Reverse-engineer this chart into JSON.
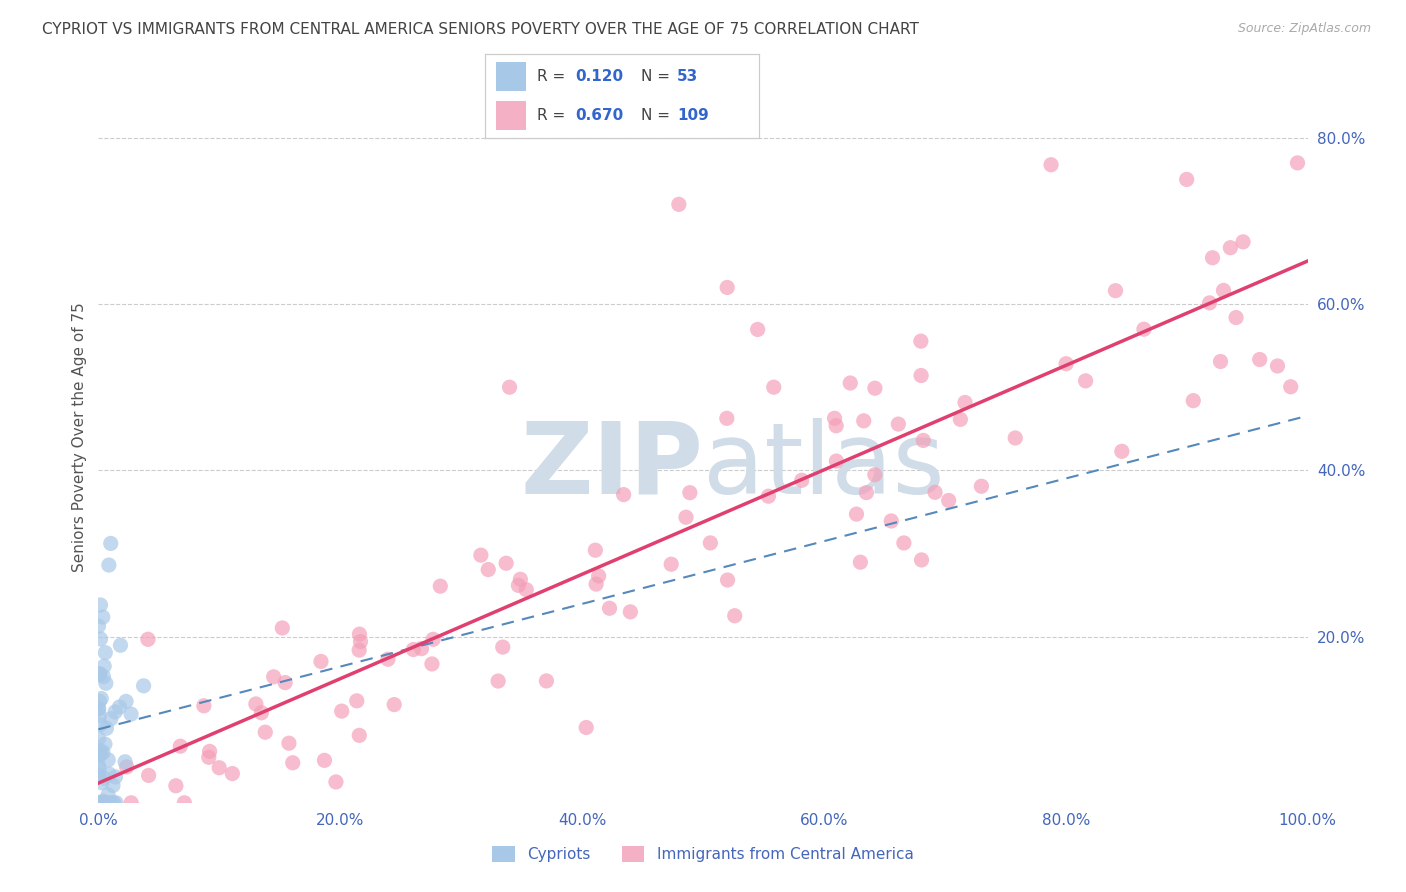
{
  "title": "CYPRIOT VS IMMIGRANTS FROM CENTRAL AMERICA SENIORS POVERTY OVER THE AGE OF 75 CORRELATION CHART",
  "source": "Source: ZipAtlas.com",
  "ylabel": "Seniors Poverty Over the Age of 75",
  "cypriot_R": 0.12,
  "cypriot_N": 53,
  "immigrant_R": 0.67,
  "immigrant_N": 109,
  "cypriot_color": "#a8c8e8",
  "immigrant_color": "#f4a0b8",
  "cypriot_line_color": "#5588bb",
  "immigrant_line_color": "#e04070",
  "cypriot_legend_color": "#a8c8e8",
  "immigrant_legend_color": "#f4b0c4",
  "legend_R_color": "#3366cc",
  "legend_N_color": "#3366cc",
  "title_color": "#444444",
  "watermark_color": "#d0dce8",
  "background_color": "#ffffff",
  "grid_color": "#cccccc",
  "axis_label_color": "#555555",
  "tick_label_color": "#4466bb",
  "xlim": [
    0.0,
    1.0
  ],
  "ylim": [
    0.0,
    0.88
  ],
  "ytick_positions": [
    0.2,
    0.4,
    0.6,
    0.8
  ],
  "ytick_labels": [
    "20.0%",
    "40.0%",
    "60.0%",
    "80.0%"
  ],
  "xtick_positions": [
    0.0,
    0.2,
    0.4,
    0.6,
    0.8,
    1.0
  ],
  "xtick_labels": [
    "0.0%",
    "20.0%",
    "40.0%",
    "60.0%",
    "80.0%",
    "100.0%"
  ]
}
